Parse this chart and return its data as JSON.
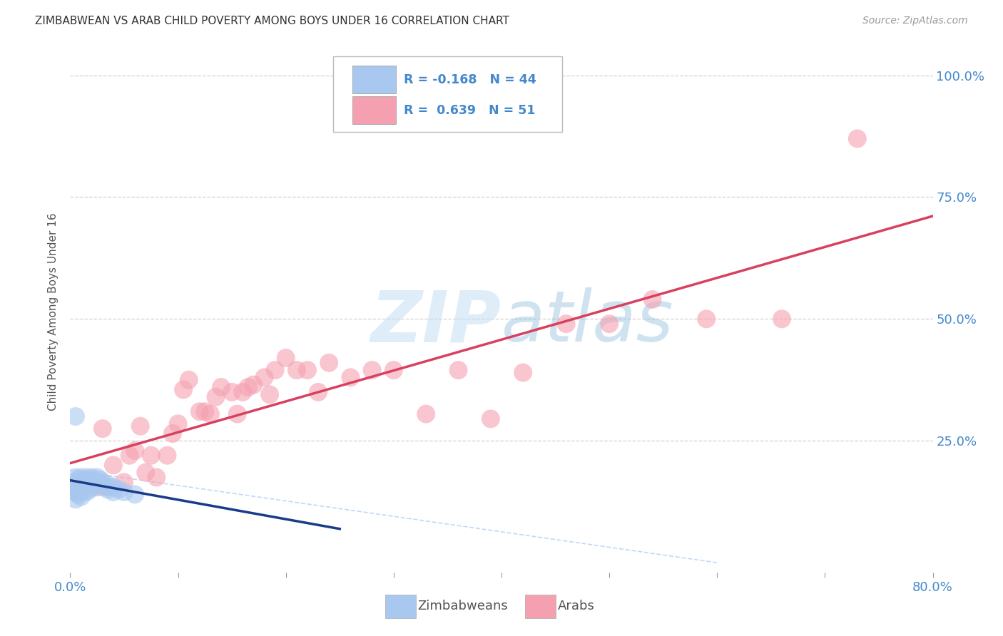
{
  "title": "ZIMBABWEAN VS ARAB CHILD POVERTY AMONG BOYS UNDER 16 CORRELATION CHART",
  "source": "Source: ZipAtlas.com",
  "ylabel": "Child Poverty Among Boys Under 16",
  "xlim": [
    0.0,
    0.8
  ],
  "ylim": [
    -0.02,
    1.05
  ],
  "background_color": "#ffffff",
  "grid_color": "#cccccc",
  "watermark_text": "ZIPatlas",
  "legend_labels": [
    "Zimbabweans",
    "Arabs"
  ],
  "zimbabwean_color": "#a8c8f0",
  "arab_color": "#f5a0b0",
  "zimbabwean_line_color": "#1a3a8a",
  "arab_line_color": "#d84060",
  "zimbabwean_R": "-0.168",
  "zimbabwean_N": "44",
  "arab_R": "0.639",
  "arab_N": "51",
  "axis_label_color": "#4488cc",
  "zimbabwean_scatter_x": [
    0.005,
    0.005,
    0.005,
    0.005,
    0.005,
    0.007,
    0.007,
    0.007,
    0.007,
    0.01,
    0.01,
    0.01,
    0.01,
    0.01,
    0.012,
    0.012,
    0.013,
    0.013,
    0.015,
    0.015,
    0.015,
    0.015,
    0.018,
    0.018,
    0.018,
    0.02,
    0.02,
    0.02,
    0.022,
    0.022,
    0.025,
    0.025,
    0.028,
    0.028,
    0.03,
    0.03,
    0.035,
    0.035,
    0.04,
    0.04,
    0.045,
    0.05,
    0.06,
    0.005
  ],
  "zimbabwean_scatter_y": [
    0.175,
    0.165,
    0.155,
    0.145,
    0.13,
    0.17,
    0.16,
    0.15,
    0.14,
    0.175,
    0.165,
    0.155,
    0.145,
    0.135,
    0.17,
    0.16,
    0.165,
    0.155,
    0.175,
    0.165,
    0.155,
    0.145,
    0.17,
    0.16,
    0.15,
    0.175,
    0.165,
    0.155,
    0.17,
    0.16,
    0.175,
    0.165,
    0.17,
    0.16,
    0.165,
    0.155,
    0.16,
    0.15,
    0.155,
    0.145,
    0.15,
    0.145,
    0.14,
    0.3
  ],
  "arab_scatter_x": [
    0.005,
    0.01,
    0.015,
    0.02,
    0.025,
    0.03,
    0.035,
    0.04,
    0.05,
    0.055,
    0.06,
    0.065,
    0.07,
    0.075,
    0.08,
    0.09,
    0.095,
    0.1,
    0.105,
    0.11,
    0.12,
    0.125,
    0.13,
    0.135,
    0.14,
    0.15,
    0.155,
    0.16,
    0.165,
    0.17,
    0.18,
    0.185,
    0.19,
    0.2,
    0.21,
    0.22,
    0.23,
    0.24,
    0.26,
    0.28,
    0.3,
    0.33,
    0.36,
    0.39,
    0.42,
    0.46,
    0.5,
    0.54,
    0.59,
    0.66,
    0.73
  ],
  "arab_scatter_y": [
    0.145,
    0.155,
    0.17,
    0.165,
    0.155,
    0.275,
    0.155,
    0.2,
    0.165,
    0.22,
    0.23,
    0.28,
    0.185,
    0.22,
    0.175,
    0.22,
    0.265,
    0.285,
    0.355,
    0.375,
    0.31,
    0.31,
    0.305,
    0.34,
    0.36,
    0.35,
    0.305,
    0.35,
    0.36,
    0.365,
    0.38,
    0.345,
    0.395,
    0.42,
    0.395,
    0.395,
    0.35,
    0.41,
    0.38,
    0.395,
    0.395,
    0.305,
    0.395,
    0.295,
    0.39,
    0.49,
    0.49,
    0.54,
    0.5,
    0.5,
    0.87
  ]
}
